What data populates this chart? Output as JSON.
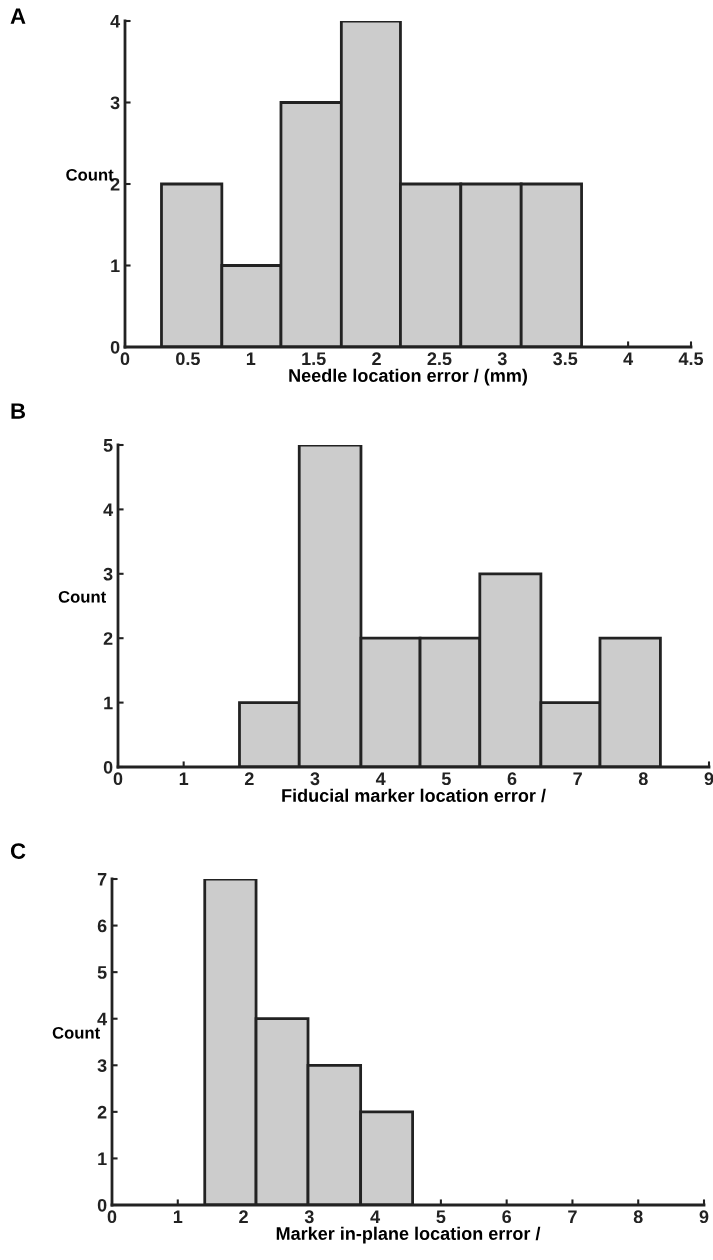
{
  "chart_data": [
    {
      "type": "histogram",
      "annotations": [
        "A"
      ],
      "xlabel": "Needle location error / (mm)",
      "ylabel": "Count",
      "bins": [
        0.29,
        0.77,
        1.24,
        1.72,
        2.19,
        2.67,
        3.15,
        3.63
      ],
      "values": [
        2,
        1,
        3,
        4,
        2,
        2,
        2
      ],
      "color": "#cccccc",
      "xlim": [
        0,
        4.5
      ],
      "xticks": [
        0,
        0.5,
        1,
        1.5,
        2,
        2.5,
        3,
        3.5,
        4,
        4.5
      ],
      "ylim": [
        0,
        4
      ],
      "yticks": [
        0,
        1,
        2,
        3,
        4
      ],
      "grid": false
    },
    {
      "type": "histogram",
      "annotations": [
        "B"
      ],
      "xlabel": "Fiducial marker location error /",
      "ylabel": "Count",
      "bins": [
        1.85,
        2.76,
        3.7,
        4.6,
        5.51,
        6.44,
        7.34,
        8.26
      ],
      "values": [
        1,
        5,
        2,
        2,
        3,
        1,
        2
      ],
      "color": "#cccccc",
      "xlim": [
        0,
        9
      ],
      "xticks": [
        0,
        1,
        2,
        3,
        4,
        5,
        6,
        7,
        8,
        9
      ],
      "ylim": [
        0,
        5
      ],
      "yticks": [
        0,
        1,
        2,
        3,
        4,
        5
      ],
      "grid": false
    },
    {
      "type": "histogram",
      "annotations": [
        "C"
      ],
      "xlabel": "Marker in-plane location error /",
      "ylabel": "Count",
      "bins": [
        1.41,
        2.19,
        2.98,
        3.78,
        4.57
      ],
      "values": [
        7,
        4,
        3,
        2
      ],
      "color": "#cccccc",
      "xlim": [
        0,
        9
      ],
      "xticks": [
        0,
        1,
        2,
        3,
        4,
        5,
        6,
        7,
        8,
        9
      ],
      "ylim": [
        0,
        7
      ],
      "yticks": [
        0,
        1,
        2,
        3,
        4,
        5,
        6,
        7
      ],
      "grid": false
    }
  ]
}
